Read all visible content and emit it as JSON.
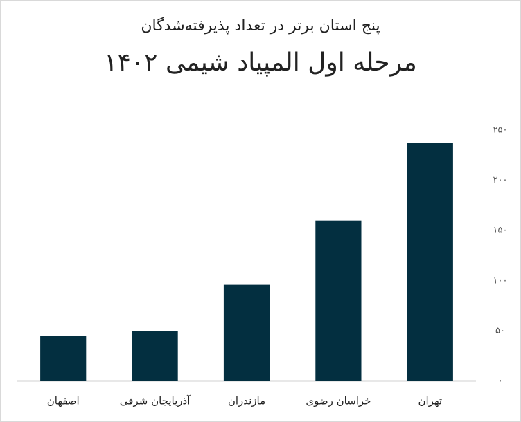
{
  "chart_data": {
    "type": "bar",
    "subtitle": "پنج استان برتر در تعداد پذیرفته‌شدگان",
    "title": "مرحله اول المپیاد شیمی ۱۴۰۲",
    "categories": [
      "اصفهان",
      "آذربایجان شرقی",
      "مازندران",
      "خراسان رضوی",
      "تهران"
    ],
    "values": [
      45,
      50,
      96,
      160,
      237
    ],
    "color": "#032f40",
    "ylim": [
      0,
      250
    ],
    "yticks": [
      {
        "value": 0,
        "label": "۰"
      },
      {
        "value": 50,
        "label": "۵۰"
      },
      {
        "value": 100,
        "label": "۱۰۰"
      },
      {
        "value": 150,
        "label": "۱۵۰"
      },
      {
        "value": 200,
        "label": "۲۰۰"
      },
      {
        "value": 250,
        "label": "۲۵۰"
      }
    ],
    "grid": false
  }
}
